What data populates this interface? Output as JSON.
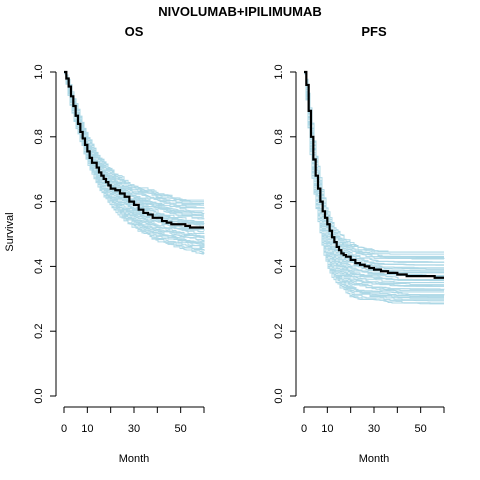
{
  "title": "NIVOLUMAB+IPILIMUMAB",
  "colors": {
    "simulated": "#add8e6",
    "observed": "#000000"
  },
  "chart_data": [
    {
      "type": "line",
      "title": "OS",
      "xlabel": "Month",
      "ylabel": "Survival",
      "xlim": [
        0,
        60
      ],
      "ylim": [
        0,
        1
      ],
      "x_ticks": [
        0,
        10,
        20,
        30,
        40,
        50,
        60
      ],
      "x_tick_labels": [
        "0",
        "10",
        "",
        "30",
        "",
        "50",
        ""
      ],
      "y_ticks": [
        0,
        0.2,
        0.4,
        0.6,
        0.8,
        1
      ],
      "y_tick_labels": [
        "0.0",
        "0.2",
        "0.4",
        "0.6",
        "0.8",
        "1.0"
      ],
      "simulated_band": {
        "count": 45,
        "x": [
          0,
          2,
          5,
          10,
          15,
          20,
          25,
          30,
          35,
          40,
          45,
          50,
          55,
          60
        ],
        "upper": [
          1.0,
          0.97,
          0.9,
          0.8,
          0.74,
          0.7,
          0.67,
          0.65,
          0.64,
          0.63,
          0.62,
          0.61,
          0.61,
          0.61
        ],
        "lower": [
          1.0,
          0.92,
          0.83,
          0.72,
          0.64,
          0.59,
          0.55,
          0.52,
          0.5,
          0.48,
          0.47,
          0.46,
          0.45,
          0.44
        ]
      },
      "series": [
        {
          "x": [
            0,
            1,
            2,
            3,
            4,
            5,
            6,
            7,
            8,
            9,
            10,
            11,
            12,
            13,
            14,
            15,
            16,
            17,
            18,
            19,
            20,
            22,
            24,
            26,
            28,
            30,
            32,
            34,
            36,
            38,
            40,
            42,
            44,
            46,
            48,
            50,
            52,
            54,
            56,
            58,
            60
          ],
          "y": [
            1.0,
            0.98,
            0.955,
            0.925,
            0.895,
            0.865,
            0.84,
            0.815,
            0.795,
            0.775,
            0.755,
            0.735,
            0.72,
            0.72,
            0.705,
            0.69,
            0.68,
            0.67,
            0.66,
            0.65,
            0.64,
            0.635,
            0.625,
            0.615,
            0.6,
            0.59,
            0.575,
            0.565,
            0.56,
            0.55,
            0.55,
            0.54,
            0.535,
            0.53,
            0.53,
            0.53,
            0.525,
            0.52,
            0.52,
            0.52,
            0.52
          ]
        }
      ]
    },
    {
      "type": "line",
      "title": "PFS",
      "xlabel": "Month",
      "ylabel": "",
      "xlim": [
        0,
        60
      ],
      "ylim": [
        0,
        1
      ],
      "x_ticks": [
        0,
        10,
        20,
        30,
        40,
        50,
        60
      ],
      "x_tick_labels": [
        "0",
        "10",
        "",
        "30",
        "",
        "50",
        ""
      ],
      "y_ticks": [
        0,
        0.2,
        0.4,
        0.6,
        0.8,
        1
      ],
      "y_tick_labels": [
        "0.0",
        "0.2",
        "0.4",
        "0.6",
        "0.8",
        "1.0"
      ],
      "simulated_band": {
        "count": 45,
        "x": [
          0,
          1,
          2,
          3,
          5,
          8,
          10,
          12,
          15,
          20,
          25,
          30,
          40,
          50,
          60
        ],
        "upper": [
          1.0,
          0.97,
          0.92,
          0.86,
          0.75,
          0.62,
          0.57,
          0.53,
          0.5,
          0.47,
          0.46,
          0.45,
          0.45,
          0.45,
          0.45
        ],
        "lower": [
          1.0,
          0.9,
          0.8,
          0.7,
          0.58,
          0.45,
          0.4,
          0.37,
          0.34,
          0.31,
          0.3,
          0.3,
          0.29,
          0.29,
          0.29
        ]
      },
      "series": [
        {
          "x": [
            0,
            1,
            2,
            3,
            4,
            5,
            6,
            7,
            8,
            9,
            10,
            11,
            12,
            13,
            14,
            15,
            16,
            17,
            18,
            20,
            22,
            24,
            26,
            28,
            30,
            33,
            36,
            40,
            44,
            48,
            52,
            56,
            60
          ],
          "y": [
            1.0,
            0.96,
            0.88,
            0.8,
            0.73,
            0.68,
            0.64,
            0.6,
            0.57,
            0.55,
            0.53,
            0.51,
            0.49,
            0.475,
            0.46,
            0.45,
            0.44,
            0.435,
            0.43,
            0.42,
            0.41,
            0.405,
            0.4,
            0.395,
            0.39,
            0.385,
            0.38,
            0.375,
            0.37,
            0.37,
            0.37,
            0.365,
            0.365
          ]
        }
      ]
    }
  ]
}
